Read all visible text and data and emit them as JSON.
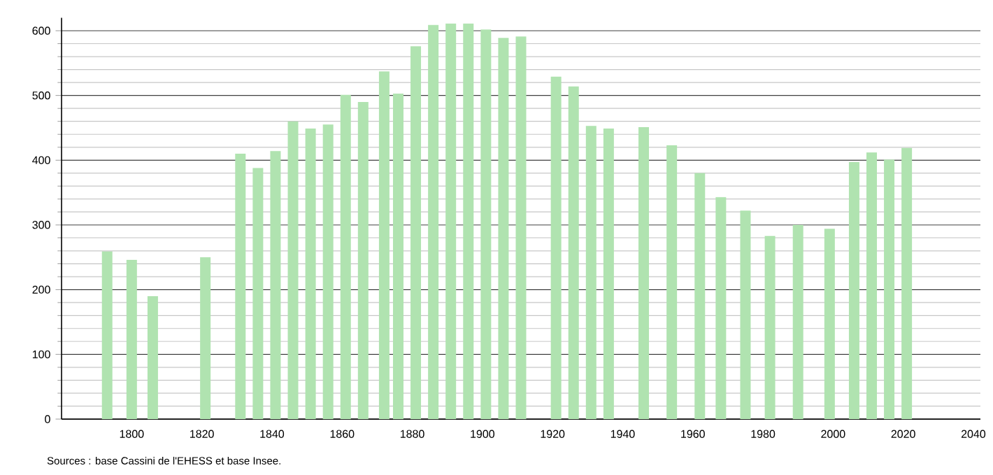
{
  "chart_data": {
    "type": "bar",
    "x": [
      1793,
      1800,
      1806,
      1821,
      1831,
      1836,
      1841,
      1846,
      1851,
      1856,
      1861,
      1866,
      1872,
      1876,
      1881,
      1886,
      1891,
      1896,
      1901,
      1906,
      1911,
      1921,
      1926,
      1931,
      1936,
      1946,
      1954,
      1962,
      1968,
      1975,
      1982,
      1990,
      1999,
      2006,
      2011,
      2016,
      2021
    ],
    "values": [
      259,
      246,
      190,
      250,
      410,
      388,
      414,
      460,
      449,
      455,
      501,
      490,
      537,
      503,
      576,
      609,
      611,
      611,
      602,
      589,
      591,
      529,
      514,
      453,
      449,
      451,
      423,
      380,
      343,
      322,
      283,
      300,
      294,
      397,
      412,
      401,
      419
    ],
    "color": "#b0e3b0",
    "xlim": [
      1780,
      2042
    ],
    "xticks": [
      1800,
      1820,
      1840,
      1860,
      1880,
      1900,
      1920,
      1940,
      1960,
      1980,
      2000,
      2020,
      2040
    ],
    "ylim": [
      0,
      620
    ],
    "yticks": [
      0,
      100,
      200,
      300,
      400,
      500,
      600
    ],
    "grid": "y",
    "annotations": [
      "Sources : base Cassini de l'EHESS et base Insee."
    ]
  }
}
